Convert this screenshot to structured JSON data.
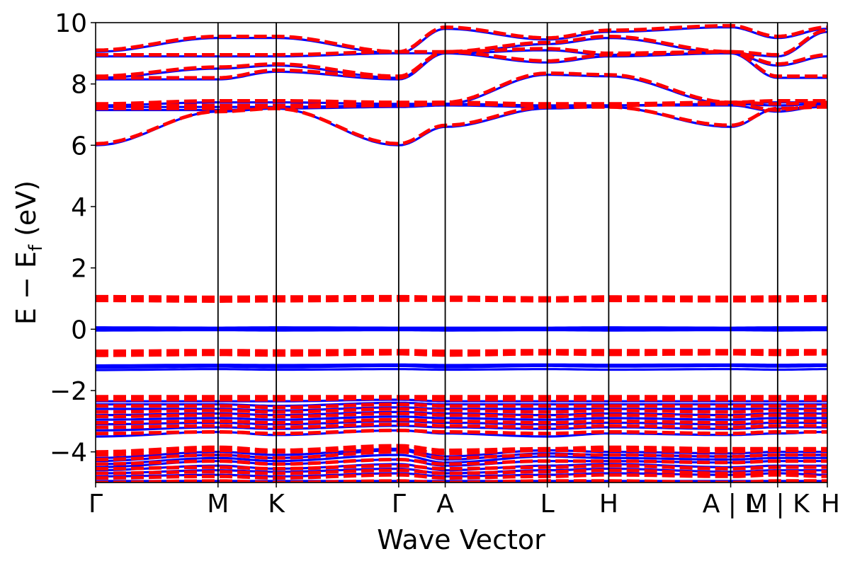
{
  "chart_data": {
    "type": "line",
    "title": "",
    "xlabel": "Wave Vector",
    "ylabel_main": "E − E",
    "ylabel_sub": "f",
    "ylabel_unit": " (eV)",
    "ylim": [
      -5,
      10
    ],
    "yticks": [
      10,
      8,
      6,
      4,
      2,
      0,
      -2,
      -4
    ],
    "ytick_labels": [
      "10",
      "8",
      "6",
      "4",
      "2",
      "0",
      "−2",
      "−4"
    ],
    "grid": false,
    "legend": "none",
    "kpath": [
      0,
      1.355,
      2.0,
      3.355,
      3.87,
      5.0,
      5.68,
      7.03,
      7.55,
      8.1
    ],
    "xtick_labels": [
      {
        "label": "Γ",
        "x": 0
      },
      {
        "label": "M",
        "x": 1.355
      },
      {
        "label": "K",
        "x": 2.0
      },
      {
        "label": "Γ",
        "x": 3.355
      },
      {
        "label": "A",
        "x": 3.87
      },
      {
        "label": "L",
        "x": 5.0
      },
      {
        "label": "H",
        "x": 5.68
      },
      {
        "label": "A | L",
        "x": 7.03
      },
      {
        "label": "M | K",
        "x": 7.55
      },
      {
        "label": "H",
        "x": 8.1
      }
    ],
    "series": [
      {
        "color": "#0000ff",
        "style": "solid",
        "bands": [
          [
            -4.95,
            -4.95,
            -4.95,
            -4.95,
            -4.95,
            -4.95,
            -4.95,
            -4.95,
            -4.95,
            -4.95
          ],
          [
            -4.8,
            -4.75,
            -4.8,
            -4.7,
            -4.8,
            -4.75,
            -4.7,
            -4.75,
            -4.7,
            -4.75
          ],
          [
            -4.7,
            -4.6,
            -4.65,
            -4.55,
            -4.7,
            -4.6,
            -4.55,
            -4.65,
            -4.6,
            -4.6
          ],
          [
            -4.6,
            -4.45,
            -4.55,
            -4.4,
            -4.6,
            -4.45,
            -4.4,
            -4.5,
            -4.45,
            -4.45
          ],
          [
            -4.5,
            -4.3,
            -4.4,
            -4.25,
            -4.45,
            -4.3,
            -4.3,
            -4.35,
            -4.3,
            -4.3
          ],
          [
            -4.4,
            -4.2,
            -4.3,
            -4.1,
            -4.35,
            -4.15,
            -4.2,
            -4.25,
            -4.2,
            -4.2
          ],
          [
            -4.3,
            -4.1,
            -4.2,
            -3.95,
            -4.25,
            -4.05,
            -4.1,
            -4.15,
            -4.1,
            -4.1
          ],
          [
            -4.2,
            -4.0,
            -4.1,
            -3.9,
            -4.15,
            -3.95,
            -4.0,
            -4.05,
            -4.0,
            -4.0
          ],
          [
            -3.5,
            -3.35,
            -3.45,
            -3.3,
            -3.4,
            -3.5,
            -3.4,
            -3.45,
            -3.4,
            -3.35
          ],
          [
            -3.3,
            -3.2,
            -3.25,
            -3.15,
            -3.2,
            -3.25,
            -3.2,
            -3.25,
            -3.2,
            -3.2
          ],
          [
            -3.1,
            -3.05,
            -3.1,
            -3.0,
            -3.05,
            -3.1,
            -3.05,
            -3.1,
            -3.05,
            -3.05
          ],
          [
            -2.95,
            -2.9,
            -2.95,
            -2.85,
            -2.9,
            -2.95,
            -2.9,
            -2.95,
            -2.9,
            -2.9
          ],
          [
            -2.8,
            -2.75,
            -2.8,
            -2.7,
            -2.75,
            -2.8,
            -2.75,
            -2.8,
            -2.75,
            -2.75
          ],
          [
            -2.6,
            -2.6,
            -2.65,
            -2.55,
            -2.6,
            -2.6,
            -2.6,
            -2.6,
            -2.6,
            -2.6
          ],
          [
            -2.45,
            -2.45,
            -2.5,
            -2.4,
            -2.45,
            -2.45,
            -2.45,
            -2.45,
            -2.45,
            -2.45
          ],
          [
            -2.35,
            -2.35,
            -2.35,
            -2.3,
            -2.35,
            -2.35,
            -2.35,
            -2.35,
            -2.35,
            -2.35
          ],
          [
            -1.33,
            -1.3,
            -1.32,
            -1.3,
            -1.32,
            -1.3,
            -1.32,
            -1.3,
            -1.32,
            -1.3
          ],
          [
            -1.25,
            -1.22,
            -1.24,
            -1.2,
            -1.24,
            -1.2,
            -1.22,
            -1.2,
            -1.22,
            -1.2
          ],
          [
            -1.18,
            -1.16,
            -1.17,
            -1.15,
            -1.17,
            -1.15,
            -1.16,
            -1.15,
            -1.16,
            -1.15
          ],
          [
            -0.04,
            -0.03,
            -0.04,
            -0.03,
            -0.04,
            -0.03,
            -0.04,
            -0.03,
            -0.04,
            -0.03
          ],
          [
            0.0,
            0.01,
            0.0,
            0.01,
            0.0,
            0.01,
            0.0,
            0.01,
            0.0,
            0.01
          ],
          [
            0.06,
            0.05,
            0.06,
            0.05,
            0.05,
            0.05,
            0.06,
            0.05,
            0.06,
            0.06
          ],
          [
            6.0,
            7.1,
            7.2,
            6.0,
            6.6,
            7.2,
            7.25,
            6.6,
            7.2,
            7.25
          ],
          [
            7.15,
            7.15,
            7.2,
            7.25,
            7.3,
            7.25,
            7.3,
            7.3,
            7.1,
            7.3
          ],
          [
            7.25,
            7.25,
            7.25,
            7.3,
            7.35,
            7.3,
            7.3,
            7.35,
            7.3,
            7.35
          ],
          [
            7.3,
            7.4,
            7.4,
            7.35,
            7.35,
            8.3,
            8.25,
            7.35,
            7.4,
            7.4
          ],
          [
            8.15,
            8.15,
            8.4,
            8.15,
            9.0,
            8.7,
            8.9,
            9.0,
            8.2,
            8.2
          ],
          [
            8.2,
            8.5,
            8.6,
            8.2,
            9.0,
            9.1,
            8.95,
            9.0,
            8.6,
            8.9
          ],
          [
            8.9,
            8.9,
            8.9,
            9.0,
            9.0,
            9.3,
            9.5,
            9.0,
            8.9,
            9.7
          ],
          [
            9.05,
            9.5,
            9.5,
            9.0,
            9.8,
            9.45,
            9.7,
            9.85,
            9.5,
            9.8
          ]
        ]
      },
      {
        "color": "#ff0000",
        "style": "dashed",
        "bands": [
          [
            -5.0,
            -4.95,
            -5.0,
            -4.95,
            -5.0,
            -4.95,
            -4.95,
            -5.0,
            -4.95,
            -4.95
          ],
          [
            -4.85,
            -4.8,
            -4.85,
            -4.75,
            -4.85,
            -4.8,
            -4.75,
            -4.8,
            -4.75,
            -4.8
          ],
          [
            -4.7,
            -4.65,
            -4.7,
            -4.6,
            -4.7,
            -4.65,
            -4.6,
            -4.7,
            -4.65,
            -4.65
          ],
          [
            -4.55,
            -4.5,
            -4.55,
            -4.45,
            -4.55,
            -4.5,
            -4.45,
            -4.55,
            -4.5,
            -4.5
          ],
          [
            -4.4,
            -4.3,
            -4.4,
            -4.25,
            -4.4,
            -4.3,
            -4.3,
            -4.35,
            -4.3,
            -4.3
          ],
          [
            -4.25,
            -4.1,
            -4.2,
            -4.0,
            -4.2,
            -4.1,
            -4.1,
            -4.15,
            -4.1,
            -4.1
          ],
          [
            -4.1,
            -3.95,
            -4.0,
            -3.9,
            -4.05,
            -3.95,
            -3.95,
            -4.0,
            -3.95,
            -3.95
          ],
          [
            -4.0,
            -3.85,
            -3.95,
            -3.8,
            -3.95,
            -3.9,
            -3.85,
            -3.9,
            -3.9,
            -3.9
          ],
          [
            -3.4,
            -3.35,
            -3.4,
            -3.3,
            -3.35,
            -3.4,
            -3.35,
            -3.4,
            -3.35,
            -3.35
          ],
          [
            -3.2,
            -3.15,
            -3.2,
            -3.1,
            -3.15,
            -3.2,
            -3.15,
            -3.2,
            -3.15,
            -3.15
          ],
          [
            -3.05,
            -3.0,
            -3.05,
            -2.95,
            -3.0,
            -3.05,
            -3.0,
            -3.05,
            -3.0,
            -3.0
          ],
          [
            -2.85,
            -2.8,
            -2.85,
            -2.75,
            -2.8,
            -2.85,
            -2.8,
            -2.85,
            -2.8,
            -2.8
          ],
          [
            -2.7,
            -2.65,
            -2.7,
            -2.6,
            -2.65,
            -2.7,
            -2.65,
            -2.7,
            -2.65,
            -2.65
          ],
          [
            -2.5,
            -2.5,
            -2.55,
            -2.45,
            -2.5,
            -2.5,
            -2.5,
            -2.5,
            -2.5,
            -2.5
          ],
          [
            -2.3,
            -2.3,
            -2.3,
            -2.25,
            -2.3,
            -2.3,
            -2.3,
            -2.3,
            -2.3,
            -2.3
          ],
          [
            -2.2,
            -2.2,
            -2.2,
            -2.2,
            -2.2,
            -2.2,
            -2.2,
            -2.2,
            -2.2,
            -2.2
          ],
          [
            -0.85,
            -0.82,
            -0.84,
            -0.8,
            -0.84,
            -0.8,
            -0.82,
            -0.8,
            -0.82,
            -0.8
          ],
          [
            -0.78,
            -0.76,
            -0.77,
            -0.75,
            -0.77,
            -0.74,
            -0.76,
            -0.75,
            -0.76,
            -0.75
          ],
          [
            -0.72,
            -0.7,
            -0.71,
            -0.7,
            -0.72,
            -0.7,
            -0.7,
            -0.7,
            -0.7,
            -0.7
          ],
          [
            0.94,
            0.92,
            0.93,
            0.95,
            0.95,
            0.93,
            0.94,
            0.93,
            0.93,
            0.94
          ],
          [
            1.0,
            0.98,
            1.0,
            1.01,
            1.0,
            0.98,
            1.0,
            0.99,
            1.0,
            1.0
          ],
          [
            1.06,
            1.04,
            1.05,
            1.06,
            1.04,
            1.02,
            1.05,
            1.04,
            1.05,
            1.06
          ],
          [
            6.05,
            7.1,
            7.2,
            6.05,
            6.65,
            7.25,
            7.25,
            6.65,
            7.2,
            7.25
          ],
          [
            7.2,
            7.2,
            7.25,
            7.3,
            7.35,
            7.3,
            7.3,
            7.35,
            7.15,
            7.35
          ],
          [
            7.3,
            7.3,
            7.3,
            7.35,
            7.4,
            7.35,
            7.35,
            7.4,
            7.35,
            7.4
          ],
          [
            7.35,
            7.45,
            7.45,
            7.4,
            7.4,
            8.35,
            8.3,
            7.4,
            7.45,
            7.45
          ],
          [
            8.2,
            8.2,
            8.45,
            8.2,
            9.05,
            8.75,
            8.95,
            9.05,
            8.25,
            8.25
          ],
          [
            8.25,
            8.55,
            8.65,
            8.25,
            9.05,
            9.15,
            9.0,
            9.05,
            8.65,
            8.95
          ],
          [
            8.95,
            8.95,
            8.95,
            9.05,
            9.05,
            9.35,
            9.55,
            9.05,
            8.95,
            9.75
          ],
          [
            9.1,
            9.55,
            9.55,
            9.05,
            9.85,
            9.5,
            9.75,
            9.9,
            9.55,
            9.85
          ]
        ]
      }
    ]
  }
}
